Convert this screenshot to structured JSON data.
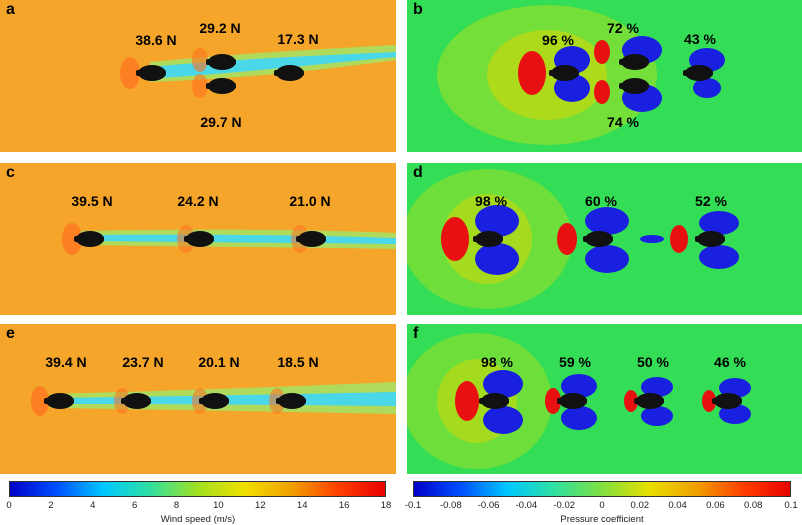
{
  "panels": [
    {
      "id": "a",
      "label": "a",
      "kind": "wind",
      "labels": [
        "38.6 N",
        "29.2 N",
        "17.3 N",
        "29.7 N"
      ]
    },
    {
      "id": "b",
      "label": "b",
      "kind": "pressure",
      "labels": [
        "96 %",
        "72 %",
        "43 %",
        "74 %"
      ]
    },
    {
      "id": "c",
      "label": "c",
      "kind": "wind",
      "labels": [
        "39.5 N",
        "24.2 N",
        "21.0 N"
      ]
    },
    {
      "id": "d",
      "label": "d",
      "kind": "pressure",
      "labels": [
        "98 %",
        "60 %",
        "52 %"
      ]
    },
    {
      "id": "e",
      "label": "e",
      "kind": "wind",
      "labels": [
        "39.4 N",
        "23.7 N",
        "20.1 N",
        "18.5 N"
      ]
    },
    {
      "id": "f",
      "label": "f",
      "kind": "pressure",
      "labels": [
        "98 %",
        "59 %",
        "50 %",
        "46 %"
      ]
    }
  ],
  "colorbars": {
    "wind": {
      "title": "Wind speed (m/s)",
      "min": 0,
      "max": 18,
      "ticks": [
        "0",
        "2",
        "4",
        "6",
        "8",
        "10",
        "12",
        "14",
        "16",
        "18"
      ],
      "colors": [
        "#0000c8",
        "#0050ff",
        "#00c8ff",
        "#30e0a0",
        "#a0e020",
        "#f0e000",
        "#f0a000",
        "#ff4000",
        "#e80000"
      ]
    },
    "pressure": {
      "title": "Pressure coefficient",
      "min": -0.1,
      "max": 0.1,
      "ticks": [
        "-0.1",
        "-0.08",
        "-0.06",
        "-0.04",
        "-0.02",
        "0",
        "0.02",
        "0.04",
        "0.06",
        "0.08",
        "0.1"
      ],
      "colors": [
        "#0000c8",
        "#0050ff",
        "#00c8ff",
        "#30e0a0",
        "#80e040",
        "#e8e000",
        "#f0a000",
        "#ff4000",
        "#e80000"
      ]
    }
  },
  "colors": {
    "wind_background": "#f5a52a",
    "pressure_background": "#33dd55",
    "wake": "#4ad8e8",
    "low_pressure": "#1a20e0",
    "high_pressure": "#e81010",
    "rider": "#111111"
  }
}
